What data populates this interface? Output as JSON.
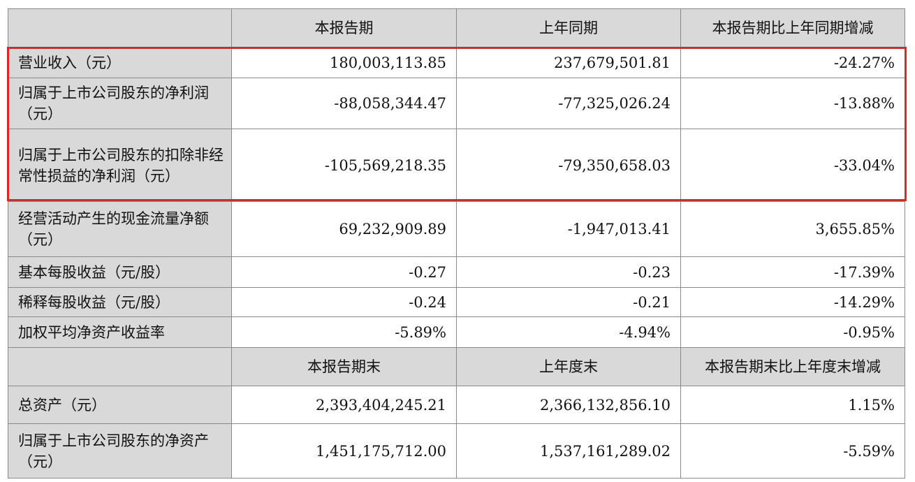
{
  "header1": [
    "",
    "本报告期",
    "上年同期",
    "本报告期比上年同期增减"
  ],
  "rows1": [
    {
      "label": "营业收入（元）",
      "values": [
        "180,003,113.85",
        "237,679,501.81",
        "-24.27%"
      ]
    },
    {
      "label": "归属于上市公司股东的净利润（元）",
      "values": [
        "-88,058,344.47",
        "-77,325,026.24",
        "-13.88%"
      ]
    },
    {
      "label": "归属于上市公司股东的扣除非经常性损益的净利润（元）",
      "values": [
        "-105,569,218.35",
        "-79,350,658.03",
        "-33.04%"
      ]
    },
    {
      "label": "经营活动产生的现金流量净额（元）",
      "values": [
        "69,232,909.89",
        "-1,947,013.41",
        "3,655.85%"
      ]
    },
    {
      "label": "基本每股收益（元/股）",
      "values": [
        "-0.27",
        "-0.23",
        "-17.39%"
      ]
    },
    {
      "label": "稀释每股收益（元/股）",
      "values": [
        "-0.24",
        "-0.21",
        "-14.29%"
      ]
    },
    {
      "label": "加权平均净资产收益率",
      "values": [
        "-5.89%",
        "-4.94%",
        "-0.95%"
      ]
    }
  ],
  "header2": [
    "",
    "本报告期末",
    "上年度末",
    "本报告期末比上年度末增减"
  ],
  "rows2": [
    {
      "label": "总资产（元）",
      "values": [
        "2,393,404,245.21",
        "2,366,132,856.10",
        "1.15%"
      ]
    },
    {
      "label": "归属于上市公司股东的净资产（元）",
      "values": [
        "1,451,175,712.00",
        "1,537,161,289.02",
        "-5.59%"
      ]
    }
  ],
  "highlight_color": "#e8231d"
}
